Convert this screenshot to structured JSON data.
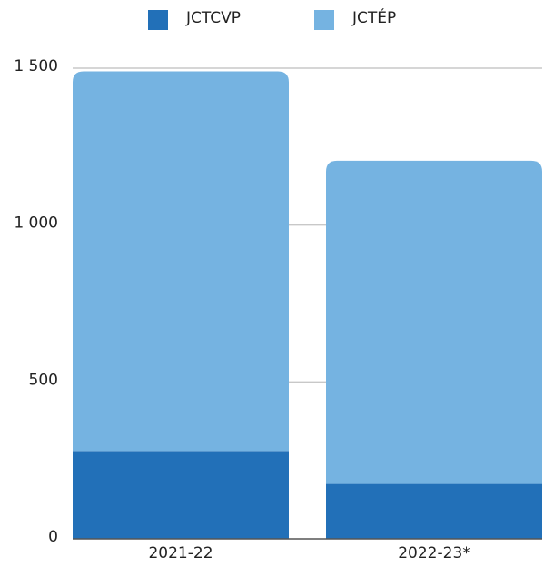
{
  "chart_data": {
    "type": "stacked_bar",
    "categories": [
      "2021-22",
      "2022-23*"
    ],
    "series": [
      {
        "name": "JCTCVP",
        "color": "#2270b8",
        "values": [
          280,
          175
        ]
      },
      {
        "name": "JCTÉP",
        "color": "#75b3e1",
        "values": [
          1210,
          1030
        ]
      }
    ],
    "ylim": [
      0,
      1500
    ],
    "yticks": [
      0,
      500,
      {
        "value": 1000,
        "label": "1 000"
      },
      {
        "value": 1500,
        "label": "1 500"
      }
    ],
    "grid": true,
    "legend": "top"
  }
}
